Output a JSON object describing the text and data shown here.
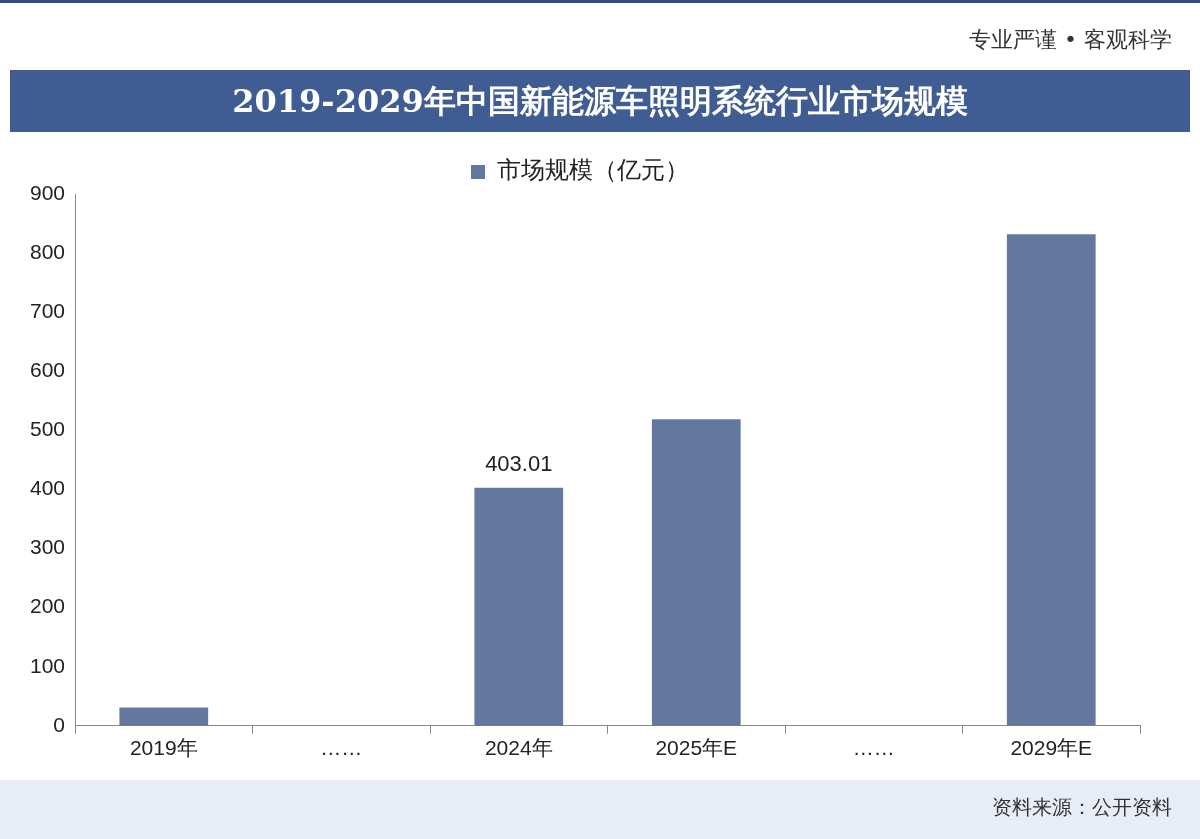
{
  "chart_data": {
    "type": "bar",
    "title": "2019-2029年中国新能源车照明系统行业市场规模",
    "categories": [
      "2019年",
      "……",
      "2024年",
      "2025年E",
      "……",
      "2029年E"
    ],
    "series": [
      {
        "name": "市场规模（亿元）",
        "color": "#64789f",
        "values": [
          31,
          null,
          403.01,
          519,
          null,
          832
        ],
        "value_labels": [
          null,
          null,
          "403.01",
          null,
          null,
          null
        ]
      }
    ],
    "ylim": [
      0,
      900
    ],
    "yticks": [
      0,
      100,
      200,
      300,
      400,
      500,
      600,
      700,
      800,
      900
    ],
    "grid": false,
    "legend": "top",
    "annotations": [
      "专业严谨 • 客观科学",
      "资料来源：公开资料"
    ]
  }
}
